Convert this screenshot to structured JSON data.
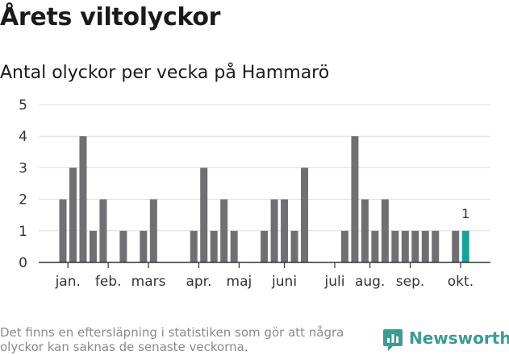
{
  "title": "Årets viltolyckor",
  "subtitle": "Antal olyckor per vecka på Hammarö",
  "footnote": "Det finns en eftersläpning i statistiken som gör att några olyckor kan saknas de senaste veckorna.",
  "brand": {
    "name": "Newsworthy",
    "icon": "newsworthy-logo-icon",
    "color": "#3a9c94"
  },
  "colors": {
    "bar": "#707074",
    "highlight": "#14a39a",
    "grid": "#dcdcdc",
    "axis": "#333333"
  },
  "chart_data": {
    "type": "bar",
    "title": "Antal olyckor per vecka på Hammarö",
    "xlabel": "",
    "ylabel": "",
    "ylim": [
      0,
      5
    ],
    "yticks": [
      0,
      1,
      2,
      3,
      4,
      5
    ],
    "grid": true,
    "legend": "none",
    "weeks": [
      1,
      2,
      3,
      4,
      5,
      6,
      7,
      8,
      9,
      10,
      11,
      12,
      13,
      14,
      15,
      16,
      17,
      18,
      19,
      20,
      21,
      22,
      23,
      24,
      25,
      26,
      27,
      28,
      29,
      30,
      31,
      32,
      33,
      34,
      35,
      36,
      37,
      38,
      39,
      40,
      41,
      42
    ],
    "values": [
      2,
      3,
      4,
      1,
      2,
      0,
      1,
      0,
      1,
      2,
      0,
      0,
      0,
      1,
      3,
      1,
      2,
      1,
      0,
      0,
      1,
      2,
      2,
      1,
      3,
      0,
      0,
      0,
      1,
      4,
      2,
      1,
      2,
      1,
      1,
      1,
      1,
      1,
      0,
      1,
      1,
      0
    ],
    "highlight_week": 41,
    "highlight_label": "1",
    "month_labels": [
      {
        "label": "jan.",
        "week": 1.5
      },
      {
        "label": "feb.",
        "week": 5.5
      },
      {
        "label": "mars",
        "week": 9.5
      },
      {
        "label": "apr.",
        "week": 14.5
      },
      {
        "label": "maj",
        "week": 18.5
      },
      {
        "label": "juni",
        "week": 23
      },
      {
        "label": "juli",
        "week": 28
      },
      {
        "label": "aug.",
        "week": 31.5
      },
      {
        "label": "sep.",
        "week": 35.5
      },
      {
        "label": "okt.",
        "week": 40.5
      }
    ]
  }
}
